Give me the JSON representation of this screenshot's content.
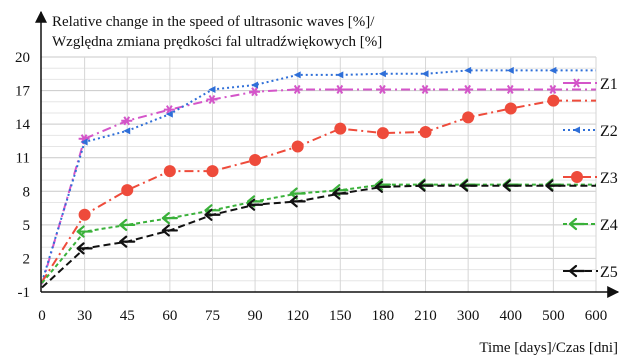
{
  "chart_data": {
    "type": "line",
    "ylabel_lines": [
      "Relative change in the speed of ultrasonic waves [%]/",
      "Względna zmiana prędkości fal ultradźwiękowych [%]"
    ],
    "xlabel": "Time [days]/Czas [dni]",
    "categories": [
      "0",
      "30",
      "45",
      "60",
      "75",
      "90",
      "120",
      "150",
      "180",
      "210",
      "300",
      "400",
      "500",
      "600"
    ],
    "yticks": [
      -1,
      2,
      5,
      8,
      11,
      14,
      17,
      20
    ],
    "ylim": [
      -1,
      20
    ],
    "grid": true,
    "legend_position": "right",
    "series": [
      {
        "name": "Z1",
        "color": "#d455c9",
        "marker": "star",
        "dash": "9 4 2 4",
        "values": [
          -0.3,
          12.7,
          14.3,
          15.3,
          16.2,
          16.9,
          17.1,
          17.1,
          17.1,
          17.1,
          17.1,
          17.1,
          17.1,
          17.1
        ]
      },
      {
        "name": "Z2",
        "color": "#2f6fd8",
        "marker": "triangle",
        "dash": "2 3",
        "values": [
          -0.1,
          12.4,
          13.4,
          14.9,
          17.1,
          17.5,
          18.4,
          18.4,
          18.5,
          18.5,
          18.8,
          18.8,
          18.8,
          18.8
        ]
      },
      {
        "name": "Z3",
        "color": "#ee4b3b",
        "marker": "circle",
        "dash": "9 4 2 4",
        "values": [
          -0.1,
          5.9,
          8.1,
          9.8,
          9.8,
          10.8,
          12.0,
          13.6,
          13.2,
          13.3,
          14.6,
          15.4,
          16.1,
          16.1
        ]
      },
      {
        "name": "Z4",
        "color": "#3ab13a",
        "marker": "arrow",
        "dash": "4 3",
        "values": [
          -0.2,
          4.4,
          5.0,
          5.6,
          6.3,
          7.1,
          7.8,
          8.1,
          8.6,
          8.6,
          8.6,
          8.6,
          8.6,
          8.6
        ]
      },
      {
        "name": "Z5",
        "color": "#111111",
        "marker": "arrow",
        "dash": "7 4",
        "values": [
          -0.6,
          2.9,
          3.5,
          4.5,
          5.9,
          6.8,
          7.1,
          7.8,
          8.4,
          8.5,
          8.5,
          8.5,
          8.5,
          8.5
        ]
      }
    ]
  }
}
